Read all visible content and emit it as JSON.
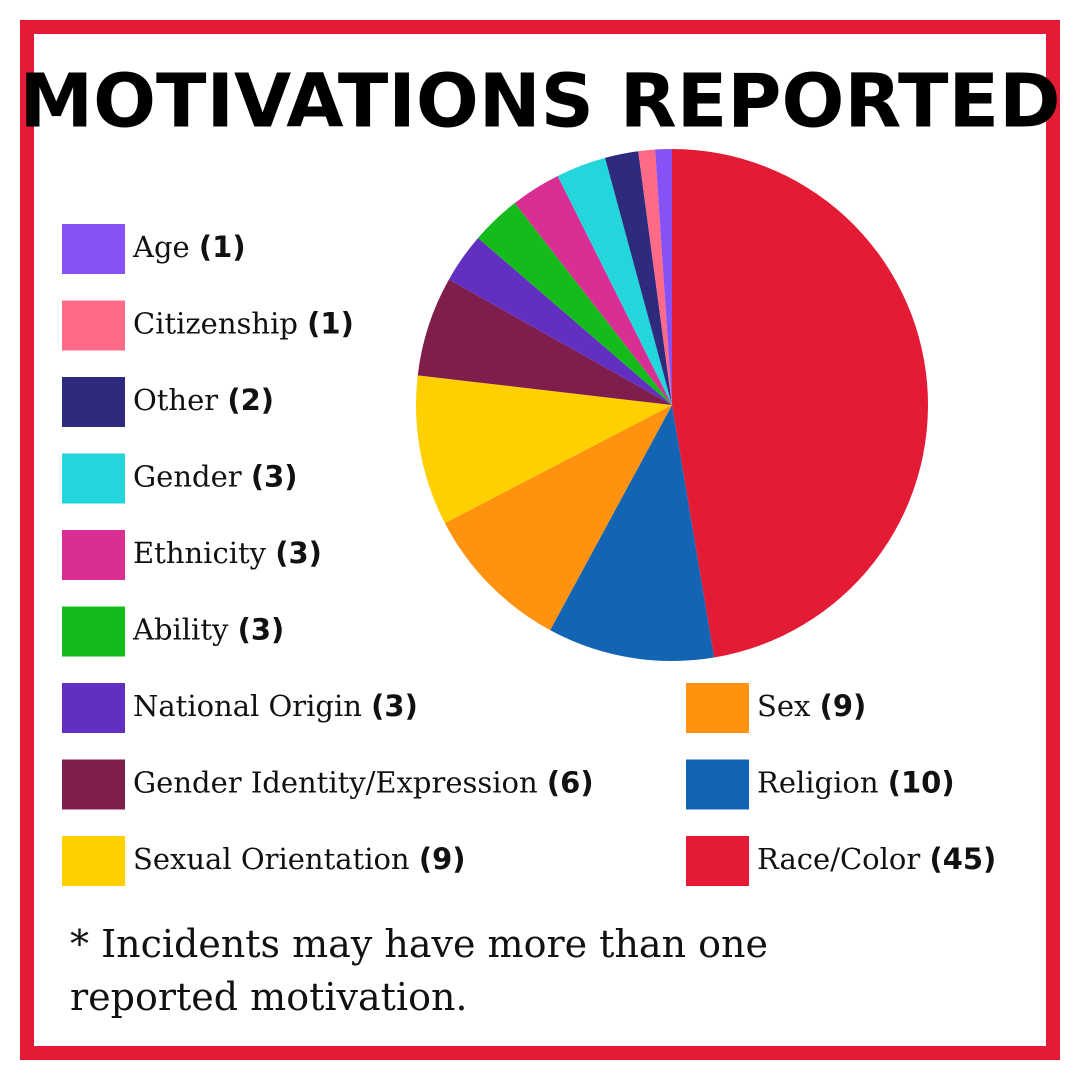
{
  "chart_data": {
    "type": "pie",
    "title": "MOTIVATIONS REPORTED",
    "categories": [
      "Age",
      "Citizenship",
      "Other",
      "Gender",
      "Ethnicity",
      "Ability",
      "National Origin",
      "Gender Identity/Expression",
      "Sexual Orientation",
      "Sex",
      "Religion",
      "Race/Color"
    ],
    "values": [
      1,
      1,
      2,
      3,
      3,
      3,
      3,
      6,
      9,
      9,
      10,
      45
    ],
    "value_labels": [
      "(1)",
      "(1)",
      "(2)",
      "(3)",
      "(3)",
      "(3)",
      "(3)",
      "(6)",
      "(9)",
      "(9)",
      "(10)",
      "(45)"
    ],
    "colors": [
      "#8752f5",
      "#ff6b87",
      "#2e2a7e",
      "#22d6dc",
      "#d92e94",
      "#14bb1a",
      "#6130c1",
      "#7f1d4d",
      "#ffd000",
      "#ff920f",
      "#1464b4",
      "#e31b35"
    ],
    "note": "* Incidents may have more than one reported motivation."
  }
}
